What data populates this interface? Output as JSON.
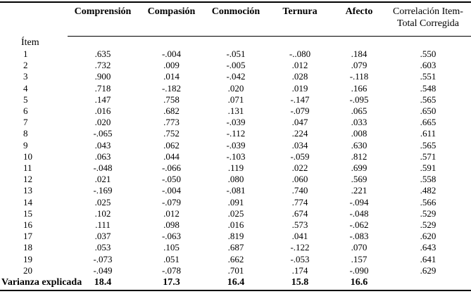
{
  "table": {
    "item_header": "Ítem",
    "columns": [
      "Comprensión",
      "Compasión",
      "Conmoción",
      "Ternura",
      "Afecto",
      "Correlación Item-Total Corregida"
    ],
    "last_column_lines": [
      "Correlación Item-",
      "Total Corregida"
    ],
    "rows": [
      {
        "item": "1",
        "values": [
          ".635",
          "-.004",
          "-.051",
          "-..080",
          ".184",
          ".550"
        ]
      },
      {
        "item": "2",
        "values": [
          ".732",
          ".009",
          "-.005",
          ".012",
          ".079",
          ".603"
        ]
      },
      {
        "item": "3",
        "values": [
          ".900",
          ".014",
          "-.042",
          ".028",
          "-.118",
          ".551"
        ]
      },
      {
        "item": "4",
        "values": [
          ".718",
          "-.182",
          ".020",
          ".019",
          ".166",
          ".548"
        ]
      },
      {
        "item": "5",
        "values": [
          ".147",
          ".758",
          ".071",
          "-.147",
          "-.095",
          ".565"
        ]
      },
      {
        "item": "6",
        "values": [
          ".016",
          ".682",
          ".131",
          "-.079",
          ".065",
          ".650"
        ]
      },
      {
        "item": "7",
        "values": [
          ".020",
          ".773",
          "-.039",
          ".047",
          ".033",
          ".665"
        ]
      },
      {
        "item": "8",
        "values": [
          "-.065",
          ".752",
          "-.112",
          ".224",
          ".008",
          ".611"
        ]
      },
      {
        "item": "9",
        "values": [
          ".043",
          ".062",
          "-.039",
          ".034",
          ".630",
          ".565"
        ]
      },
      {
        "item": "10",
        "values": [
          ".063",
          ".044",
          "-.103",
          "-.059",
          ".812",
          ".571"
        ]
      },
      {
        "item": "11",
        "values": [
          "-.048",
          "-.066",
          ".119",
          ".022",
          ".699",
          ".591"
        ]
      },
      {
        "item": "12",
        "values": [
          ".021",
          "-.050",
          ".080",
          ".060",
          ".569",
          ".558"
        ]
      },
      {
        "item": "13",
        "values": [
          "-.169",
          "-.004",
          "-.081",
          ".740",
          ".221",
          ".482"
        ]
      },
      {
        "item": "14",
        "values": [
          ".025",
          "-.079",
          ".091",
          ".774",
          "-.094",
          ".566"
        ]
      },
      {
        "item": "15",
        "values": [
          ".102",
          ".012",
          ".025",
          ".674",
          "-.048",
          ".529"
        ]
      },
      {
        "item": "16",
        "values": [
          ".111",
          ".098",
          ".016",
          ".573",
          "-.062",
          ".529"
        ]
      },
      {
        "item": "17",
        "values": [
          ".037",
          "-.063",
          ".819",
          ".041",
          "-.083",
          ".620"
        ]
      },
      {
        "item": "18",
        "values": [
          ".053",
          ".105",
          ".687",
          "-.122",
          ".070",
          ".643"
        ]
      },
      {
        "item": "19",
        "values": [
          "-.073",
          ".051",
          ".662",
          "-.053",
          ".157",
          ".641"
        ]
      },
      {
        "item": "20",
        "values": [
          "-.049",
          "-.078",
          ".701",
          ".174",
          "-.090",
          ".629"
        ]
      }
    ],
    "footer": {
      "label": "Varianza explicada",
      "values": [
        "18.4",
        "17.3",
        "16.4",
        "15.8",
        "16.6",
        ""
      ]
    }
  }
}
